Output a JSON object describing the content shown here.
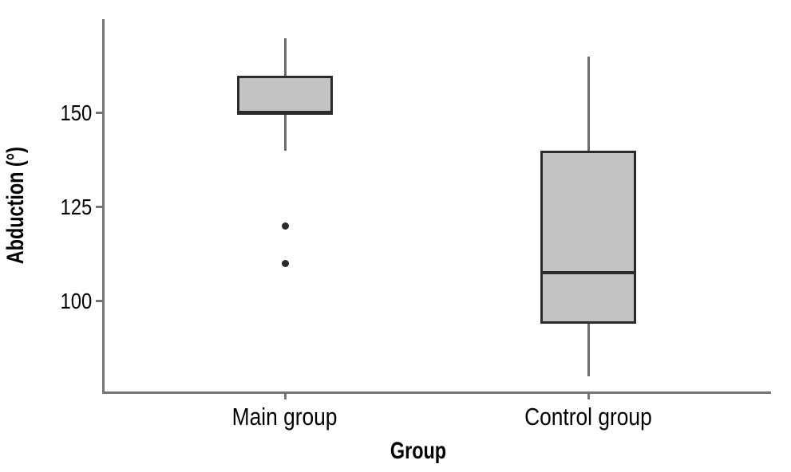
{
  "chart_data": {
    "type": "boxplot",
    "title": "",
    "xlabel": "Group",
    "ylabel": "Abduction (°)",
    "ylim": [
      76,
      175
    ],
    "yticks": [
      150,
      125,
      100
    ],
    "categories": [
      "Main group",
      "Control group"
    ],
    "grid": false,
    "legend": null,
    "series": [
      {
        "label": "Main group",
        "whisker_low": 140,
        "q1": 150,
        "median": 150,
        "q3": 160,
        "whisker_high": 170,
        "outliers": [
          120,
          110
        ]
      },
      {
        "label": "Control group",
        "whisker_low": 80,
        "q1": 94,
        "median": 107.5,
        "q3": 140,
        "whisker_high": 165,
        "outliers": []
      }
    ]
  },
  "colors": {
    "background": "#ffffff",
    "box_fill": "#c3c3c3",
    "box_border": "#2b2b2b",
    "median": "#2b2b2b",
    "outlier": "#2b2b2b",
    "whisker": "#6b6b6b",
    "axis": "#757575",
    "text": "#000000"
  }
}
